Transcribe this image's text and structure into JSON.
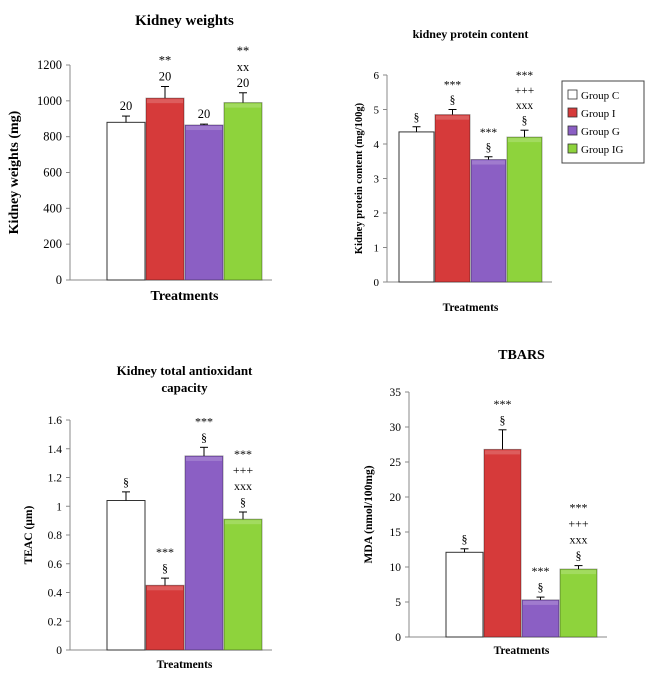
{
  "legend": {
    "items": [
      {
        "label": "Group C",
        "color": "#ffffff"
      },
      {
        "label": "Group I",
        "color": "#d63a3a"
      },
      {
        "label": "Group G",
        "color": "#8b5fc4"
      },
      {
        "label": "Group IG",
        "color": "#8ed33c"
      }
    ]
  },
  "chart_data": [
    {
      "type": "bar",
      "title": "Kidney weights",
      "ylabel": "Kidney weights (mg)",
      "xlabel": "Treatments",
      "categories": [
        "Group C",
        "Group I",
        "Group G",
        "Group IG"
      ],
      "values": [
        880,
        1015,
        865,
        990
      ],
      "errors": [
        35,
        65,
        5,
        55
      ],
      "ylim": [
        0,
        1200
      ],
      "yticks": [
        0,
        200,
        400,
        600,
        800,
        1000,
        1200
      ],
      "annotations": [
        [
          "20"
        ],
        [
          "**",
          "20"
        ],
        [
          "20"
        ],
        [
          "**",
          "xx",
          "20"
        ]
      ],
      "grid": false
    },
    {
      "type": "bar",
      "title": "kidney protein content",
      "ylabel": "Kidney protein content (mg/100g)",
      "xlabel": "Treatments",
      "categories": [
        "Group C",
        "Group I",
        "Group G",
        "Group IG"
      ],
      "values": [
        4.35,
        4.85,
        3.55,
        4.2
      ],
      "errors": [
        0.15,
        0.15,
        0.08,
        0.2
      ],
      "ylim": [
        0,
        6
      ],
      "yticks": [
        0,
        1,
        2,
        3,
        4,
        5,
        6
      ],
      "annotations": [
        [
          "§"
        ],
        [
          "***",
          "§"
        ],
        [
          "***",
          "§"
        ],
        [
          "***",
          "+++",
          "xxx",
          "§"
        ]
      ],
      "legend_position": "right",
      "grid": false
    },
    {
      "type": "bar",
      "title": "Kidney total antioxidant capacity",
      "ylabel": "TEAC (µm)",
      "xlabel": "Treatments",
      "categories": [
        "Group C",
        "Group I",
        "Group G",
        "Group IG"
      ],
      "values": [
        1.04,
        0.45,
        1.35,
        0.91
      ],
      "errors": [
        0.06,
        0.05,
        0.06,
        0.05
      ],
      "ylim": [
        0,
        1.6
      ],
      "yticks": [
        "0",
        "0.2",
        "0.4",
        "0.6",
        "0.8",
        "1",
        "1.2",
        "1.4",
        "1.6"
      ],
      "annotations": [
        [
          "§"
        ],
        [
          "***",
          "§"
        ],
        [
          "***",
          "§"
        ],
        [
          "***",
          "+++",
          "xxx",
          "§"
        ]
      ],
      "grid": false
    },
    {
      "type": "bar",
      "title": "TBARS",
      "ylabel": "MDA (nmol/100mg)",
      "xlabel": "Treatments",
      "categories": [
        "Group C",
        "Group I",
        "Group G",
        "Group IG"
      ],
      "values": [
        12.1,
        26.8,
        5.3,
        9.7
      ],
      "errors": [
        0.5,
        2.8,
        0.4,
        0.5
      ],
      "ylim": [
        0,
        35
      ],
      "yticks": [
        0,
        5,
        10,
        15,
        20,
        25,
        30,
        35
      ],
      "annotations": [
        [
          "§"
        ],
        [
          "***",
          "§"
        ],
        [
          "***",
          "§"
        ],
        [
          "***",
          "+++",
          "xxx",
          "§"
        ]
      ],
      "grid": false
    }
  ]
}
